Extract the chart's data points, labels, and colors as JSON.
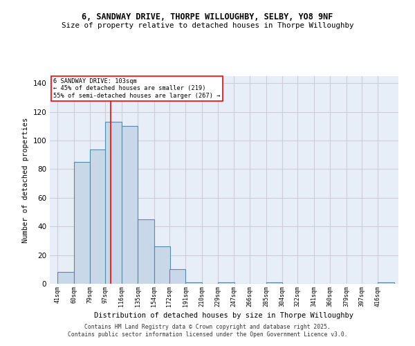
{
  "title1": "6, SANDWAY DRIVE, THORPE WILLOUGHBY, SELBY, YO8 9NF",
  "title2": "Size of property relative to detached houses in Thorpe Willoughby",
  "xlabel": "Distribution of detached houses by size in Thorpe Willoughby",
  "ylabel": "Number of detached properties",
  "heights": [
    8,
    85,
    94,
    113,
    110,
    45,
    26,
    10,
    1,
    0,
    1,
    0,
    0,
    1,
    0,
    0,
    0,
    0,
    0,
    0,
    1
  ],
  "bin_starts": [
    41,
    60,
    79,
    97,
    116,
    135,
    154,
    172,
    191,
    210,
    229,
    247,
    266,
    285,
    304,
    322,
    341,
    360,
    379,
    397,
    416
  ],
  "bin_width": 19,
  "bar_color": "#c8d8e8",
  "bar_edge_color": "#5588aa",
  "bar_edge_width": 0.8,
  "grid_color": "#ccccdd",
  "bg_color": "#e8eef8",
  "red_line_x": 103,
  "annotation_text": "6 SANDWAY DRIVE: 103sqm\n← 45% of detached houses are smaller (219)\n55% of semi-detached houses are larger (267) →",
  "footnote": "Contains HM Land Registry data © Crown copyright and database right 2025.\nContains public sector information licensed under the Open Government Licence v3.0.",
  "xtick_labels": [
    "41sqm",
    "60sqm",
    "79sqm",
    "97sqm",
    "116sqm",
    "135sqm",
    "154sqm",
    "172sqm",
    "191sqm",
    "210sqm",
    "229sqm",
    "247sqm",
    "266sqm",
    "285sqm",
    "304sqm",
    "322sqm",
    "341sqm",
    "360sqm",
    "379sqm",
    "397sqm",
    "416sqm"
  ],
  "yticks": [
    0,
    20,
    40,
    60,
    80,
    100,
    120,
    140
  ],
  "ylim": [
    0,
    145
  ],
  "xlim": [
    32,
    440
  ]
}
